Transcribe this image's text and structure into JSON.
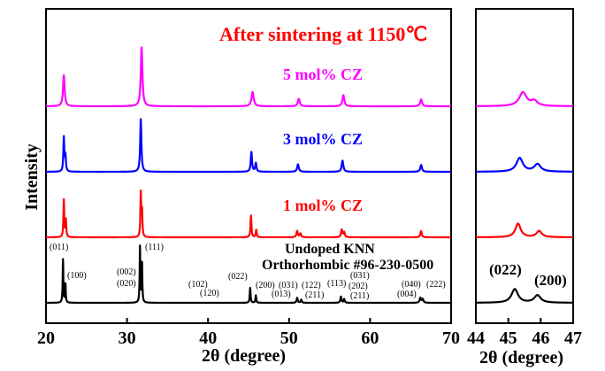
{
  "chart_data": {
    "type": "line",
    "title": "After sintering at 1150℃",
    "xlabel": "2θ (degree)",
    "ylabel": "Intensity",
    "panels": [
      {
        "name": "main",
        "xlim": [
          20,
          70
        ],
        "xticks": [
          20,
          30,
          40,
          50,
          60,
          70
        ]
      },
      {
        "name": "inset",
        "xlim": [
          44,
          47
        ],
        "xticks": [
          44,
          45,
          46,
          47
        ]
      }
    ],
    "series": [
      {
        "name": "5 mol% CZ",
        "color": "#ff00ff",
        "offset": 3.0,
        "peaks": [
          [
            22.2,
            0.5,
            0.12
          ],
          [
            31.8,
            0.95,
            0.12
          ],
          [
            45.5,
            0.23,
            0.16
          ],
          [
            51.2,
            0.12,
            0.14
          ],
          [
            56.7,
            0.18,
            0.14
          ],
          [
            66.3,
            0.11,
            0.14
          ]
        ],
        "inset_peaks": [
          [
            45.45,
            0.22,
            0.14
          ],
          [
            45.8,
            0.08,
            0.12
          ]
        ]
      },
      {
        "name": "3 mol% CZ",
        "color": "#0000ff",
        "offset": 2.0,
        "peaks": [
          [
            22.2,
            0.55,
            0.07
          ],
          [
            22.4,
            0.25,
            0.07
          ],
          [
            31.7,
            0.85,
            0.09
          ],
          [
            45.35,
            0.32,
            0.09
          ],
          [
            45.9,
            0.14,
            0.09
          ],
          [
            51.1,
            0.12,
            0.12
          ],
          [
            56.6,
            0.18,
            0.12
          ],
          [
            66.3,
            0.11,
            0.12
          ]
        ],
        "inset_peaks": [
          [
            45.35,
            0.22,
            0.12
          ],
          [
            45.9,
            0.12,
            0.12
          ]
        ]
      },
      {
        "name": "1 mol% CZ",
        "color": "#ff0000",
        "offset": 1.0,
        "peaks": [
          [
            22.2,
            0.6,
            0.06
          ],
          [
            22.45,
            0.28,
            0.06
          ],
          [
            31.7,
            0.7,
            0.06
          ],
          [
            31.85,
            0.4,
            0.06
          ],
          [
            45.3,
            0.35,
            0.07
          ],
          [
            45.95,
            0.12,
            0.07
          ],
          [
            51.0,
            0.1,
            0.1
          ],
          [
            51.4,
            0.06,
            0.1
          ],
          [
            56.5,
            0.12,
            0.1
          ],
          [
            56.8,
            0.08,
            0.1
          ],
          [
            66.3,
            0.1,
            0.1
          ]
        ],
        "inset_peaks": [
          [
            45.3,
            0.22,
            0.1
          ],
          [
            45.95,
            0.1,
            0.1
          ]
        ]
      },
      {
        "name": "Undoped KNN",
        "color": "#000000",
        "offset": 0.0,
        "peaks": [
          [
            22.1,
            0.7,
            0.05
          ],
          [
            22.4,
            0.3,
            0.05
          ],
          [
            31.6,
            0.9,
            0.05
          ],
          [
            31.85,
            0.65,
            0.05
          ],
          [
            45.2,
            0.24,
            0.06
          ],
          [
            45.9,
            0.12,
            0.06
          ],
          [
            51.0,
            0.08,
            0.08
          ],
          [
            51.5,
            0.05,
            0.08
          ],
          [
            56.4,
            0.1,
            0.08
          ],
          [
            56.8,
            0.06,
            0.08
          ],
          [
            66.2,
            0.08,
            0.1
          ],
          [
            66.5,
            0.06,
            0.1
          ]
        ],
        "inset_peaks": [
          [
            45.2,
            0.22,
            0.12
          ],
          [
            45.9,
            0.12,
            0.12
          ]
        ]
      }
    ],
    "reference": "Orthorhombic #96-230-0500",
    "hkl_labels": [
      "(011)",
      "(100)",
      "(002)",
      "(020)",
      "(111)",
      "(102)",
      "(120)",
      "(022)",
      "(200)",
      "(031)",
      "(013)",
      "(122)",
      "(211)",
      "(113)",
      "(031)",
      "(202)",
      "(211)",
      "(040)",
      "(004)",
      "(222)"
    ],
    "inset_labels": [
      "(022)",
      "(200)"
    ]
  }
}
